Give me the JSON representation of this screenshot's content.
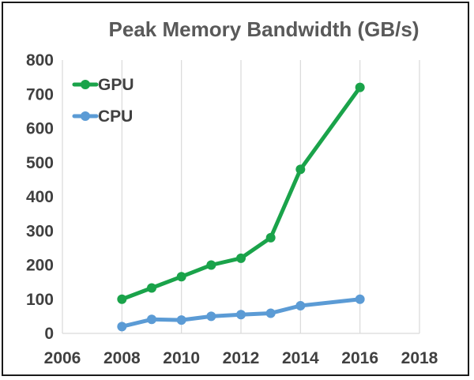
{
  "chart_data": {
    "type": "line",
    "title": "Peak Memory Bandwidth (GB/s)",
    "xlabel": "",
    "ylabel": "",
    "xlim": [
      2006,
      2018
    ],
    "ylim": [
      0,
      800
    ],
    "x_ticks": [
      2006,
      2008,
      2010,
      2012,
      2014,
      2016,
      2018
    ],
    "y_ticks": [
      0,
      100,
      200,
      300,
      400,
      500,
      600,
      700,
      800
    ],
    "grid": "vertical",
    "legend_position": "top-left",
    "series": [
      {
        "name": "GPU",
        "color": "#1aa34a",
        "points": [
          {
            "x": 2008,
            "y": 100
          },
          {
            "x": 2009,
            "y": 133
          },
          {
            "x": 2010,
            "y": 166
          },
          {
            "x": 2011,
            "y": 200
          },
          {
            "x": 2012,
            "y": 220
          },
          {
            "x": 2013,
            "y": 280
          },
          {
            "x": 2014,
            "y": 480
          },
          {
            "x": 2016,
            "y": 720
          }
        ]
      },
      {
        "name": "CPU",
        "color": "#5b9bd5",
        "points": [
          {
            "x": 2008,
            "y": 20
          },
          {
            "x": 2009,
            "y": 41
          },
          {
            "x": 2010,
            "y": 39
          },
          {
            "x": 2011,
            "y": 50
          },
          {
            "x": 2012,
            "y": 55
          },
          {
            "x": 2013,
            "y": 59
          },
          {
            "x": 2014,
            "y": 81
          },
          {
            "x": 2016,
            "y": 100
          }
        ]
      }
    ]
  }
}
